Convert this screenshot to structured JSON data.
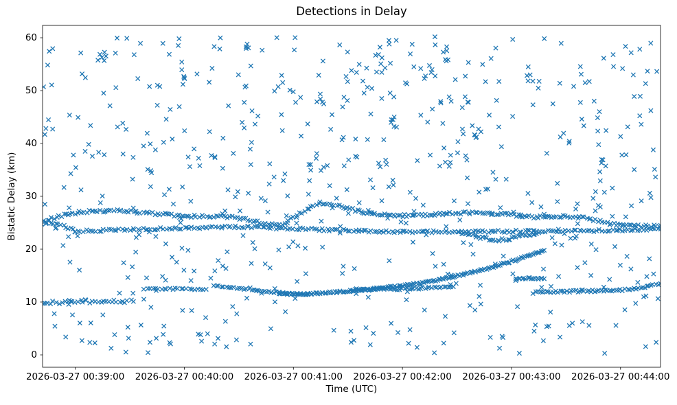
{
  "chart_data": {
    "type": "scatter",
    "title": "Detections in Delay",
    "xlabel": "Time (UTC)",
    "ylabel": "Bistatic Delay (km)",
    "marker": "x",
    "marker_color": "#1f77b4",
    "marker_half_size_px": 3.1,
    "seed": 42,
    "x_tick_labels": [
      "2026-03-27 00:39:00",
      "2026-03-27 00:40:00",
      "2026-03-27 00:41:00",
      "2026-03-27 00:42:00",
      "2026-03-27 00:43:00",
      "2026-03-27 00:44:00"
    ],
    "x_tick_seconds": [
      0,
      60,
      120,
      180,
      240,
      300
    ],
    "x_range_seconds": [
      -18,
      322
    ],
    "y_tick_labels": [
      "0",
      "10",
      "20",
      "30",
      "40",
      "50",
      "60"
    ],
    "y_ticks": [
      0,
      10,
      20,
      30,
      40,
      50,
      60
    ],
    "y_range": [
      -2.34,
      62.34
    ],
    "grid": false,
    "legend": "none",
    "tracks": [
      {
        "name": "main-band-lower",
        "step_s": 1.4,
        "jitter_t": 0.6,
        "jitter_y": 0.22,
        "points": [
          [
            -18,
            24.9
          ],
          [
            -8,
            24.6
          ],
          [
            0,
            23.4
          ],
          [
            30,
            23.7
          ],
          [
            60,
            24.0
          ],
          [
            90,
            24.2
          ],
          [
            120,
            23.9
          ],
          [
            150,
            23.5
          ],
          [
            180,
            23.3
          ],
          [
            210,
            23.3
          ],
          [
            240,
            23.4
          ],
          [
            270,
            23.4
          ],
          [
            300,
            23.6
          ],
          [
            322,
            23.8
          ]
        ]
      },
      {
        "name": "main-band-upper",
        "step_s": 1.3,
        "jitter_t": 0.6,
        "jitter_y": 0.25,
        "points": [
          [
            -18,
            25.2
          ],
          [
            -5,
            26.6
          ],
          [
            5,
            27.1
          ],
          [
            20,
            27.3
          ],
          [
            40,
            26.9
          ],
          [
            60,
            26.2
          ],
          [
            80,
            26.3
          ],
          [
            95,
            25.6
          ],
          [
            105,
            24.7
          ],
          [
            115,
            24.9
          ],
          [
            125,
            26.9
          ],
          [
            135,
            28.8
          ],
          [
            145,
            28.2
          ],
          [
            160,
            26.8
          ],
          [
            175,
            26.3
          ],
          [
            190,
            26.4
          ],
          [
            205,
            26.8
          ],
          [
            220,
            26.9
          ],
          [
            235,
            26.7
          ],
          [
            250,
            26.1
          ],
          [
            265,
            26.2
          ],
          [
            280,
            26.0
          ],
          [
            295,
            24.7
          ],
          [
            310,
            24.4
          ],
          [
            322,
            24.5
          ]
        ]
      },
      {
        "name": "dip-segment",
        "step_s": 1.2,
        "jitter_t": 0.5,
        "jitter_y": 0.25,
        "points": [
          [
            213,
            23.0
          ],
          [
            222,
            22.3
          ],
          [
            230,
            21.7
          ],
          [
            238,
            21.9
          ],
          [
            247,
            22.6
          ],
          [
            255,
            23.1
          ]
        ]
      },
      {
        "name": "rising-track",
        "step_s": 0.9,
        "jitter_t": 0.4,
        "jitter_y": 0.16,
        "points": [
          [
            112,
            11.5
          ],
          [
            125,
            11.5
          ],
          [
            140,
            11.8
          ],
          [
            155,
            12.2
          ],
          [
            170,
            12.7
          ],
          [
            185,
            13.3
          ],
          [
            200,
            14.2
          ],
          [
            215,
            15.3
          ],
          [
            228,
            16.5
          ],
          [
            240,
            17.7
          ],
          [
            250,
            18.8
          ],
          [
            258,
            19.8
          ]
        ]
      },
      {
        "name": "low-band-early",
        "step_s": 1.6,
        "jitter_t": 0.7,
        "jitter_y": 0.3,
        "points": [
          [
            -18,
            9.8
          ],
          [
            -6,
            10.0
          ],
          [
            6,
            10.1
          ],
          [
            20,
            10.2
          ],
          [
            32,
            10.1
          ]
        ]
      },
      {
        "name": "low-flat-12p5",
        "step_s": 1.5,
        "jitter_t": 0.5,
        "jitter_y": 0.15,
        "points": [
          [
            38,
            12.4
          ],
          [
            55,
            12.5
          ],
          [
            72,
            12.4
          ]
        ]
      },
      {
        "name": "low-descending",
        "step_s": 1.4,
        "jitter_t": 0.5,
        "jitter_y": 0.15,
        "points": [
          [
            76,
            13.1
          ],
          [
            90,
            12.6
          ],
          [
            104,
            12.0
          ],
          [
            118,
            11.6
          ],
          [
            128,
            11.4
          ]
        ]
      },
      {
        "name": "low-mid-band",
        "step_s": 1.3,
        "jitter_t": 0.5,
        "jitter_y": 0.2,
        "points": [
          [
            152,
            12.2
          ],
          [
            165,
            12.4
          ],
          [
            180,
            12.5
          ],
          [
            195,
            12.7
          ],
          [
            208,
            12.9
          ]
        ]
      },
      {
        "name": "short-14p5",
        "step_s": 1.0,
        "jitter_t": 0.4,
        "jitter_y": 0.12,
        "points": [
          [
            242,
            14.4
          ],
          [
            250,
            14.5
          ],
          [
            258,
            14.4
          ]
        ]
      },
      {
        "name": "low-band-late",
        "step_s": 1.2,
        "jitter_t": 0.5,
        "jitter_y": 0.2,
        "points": [
          [
            252,
            11.8
          ],
          [
            268,
            12.0
          ],
          [
            286,
            12.1
          ],
          [
            300,
            12.2
          ],
          [
            310,
            12.6
          ],
          [
            318,
            13.3
          ],
          [
            322,
            13.5
          ]
        ]
      }
    ],
    "clusters": [
      [
        15,
        56.5,
        5,
        3.0,
        1.5
      ],
      [
        60,
        52.0,
        4,
        3.0,
        2.0
      ],
      [
        95,
        58.5,
        4,
        2.5,
        1.2
      ],
      [
        135,
        47.8,
        5,
        3.0,
        1.8
      ],
      [
        168,
        55.3,
        6,
        4.0,
        2.2
      ],
      [
        175,
        44.0,
        5,
        3.0,
        1.8
      ],
      [
        205,
        57.4,
        6,
        4.0,
        2.0
      ],
      [
        222,
        41.0,
        4,
        3.0,
        1.5
      ],
      [
        250,
        52.0,
        4,
        3.0,
        1.8
      ],
      [
        290,
        36.5,
        4,
        2.5,
        1.5
      ]
    ],
    "clutter": {
      "count": 580,
      "t_range": [
        -18,
        322
      ],
      "y_range": [
        0.3,
        60.2
      ]
    }
  }
}
